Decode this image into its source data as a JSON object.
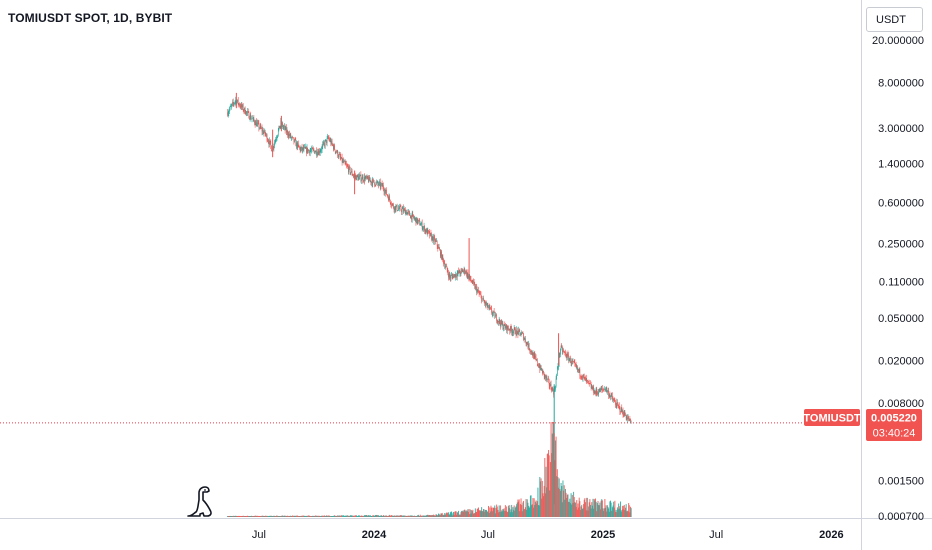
{
  "header": {
    "title": "TOMIUSDT SPOT, 1D, BYBIT",
    "currency_button": "USDT"
  },
  "colors": {
    "up": "#26a69a",
    "down": "#ef5350",
    "price_line": "#f23645",
    "label_bg": "#f05350",
    "grid": "#e0e3eb"
  },
  "price_label": {
    "symbol": "TOMIUSDT",
    "price": "0.005220",
    "countdown": "03:40:24"
  },
  "chart_data": {
    "type": "candlestick",
    "scale": "log",
    "y_ticks": [
      "20.000000",
      "8.000000",
      "3.000000",
      "1.400000",
      "0.600000",
      "0.250000",
      "0.110000",
      "0.050000",
      "0.020000",
      "0.008000",
      "0.001500",
      "0.000700"
    ],
    "x_ticks": [
      {
        "label": "Jul",
        "date": "2023-07-01",
        "bold": false
      },
      {
        "label": "2024",
        "date": "2024-01-01",
        "bold": true
      },
      {
        "label": "Jul",
        "date": "2024-07-01",
        "bold": false
      },
      {
        "label": "2025",
        "date": "2025-01-01",
        "bold": true
      },
      {
        "label": "Jul",
        "date": "2025-07-01",
        "bold": false
      },
      {
        "label": "2026",
        "date": "2026-01-01",
        "bold": true
      }
    ],
    "price_path": [
      {
        "date": "2023-05-12",
        "price": 4.2
      },
      {
        "date": "2023-05-25",
        "price": 5.5
      },
      {
        "date": "2023-06-05",
        "price": 4.6
      },
      {
        "date": "2023-06-25",
        "price": 3.4
      },
      {
        "date": "2023-07-12",
        "price": 2.6
      },
      {
        "date": "2023-07-22",
        "price": 1.9
      },
      {
        "date": "2023-08-05",
        "price": 3.3
      },
      {
        "date": "2023-08-20",
        "price": 2.5
      },
      {
        "date": "2023-09-05",
        "price": 1.9
      },
      {
        "date": "2023-10-05",
        "price": 1.8
      },
      {
        "date": "2023-10-20",
        "price": 2.4
      },
      {
        "date": "2023-11-10",
        "price": 1.5
      },
      {
        "date": "2023-12-01",
        "price": 1.05
      },
      {
        "date": "2023-12-20",
        "price": 1.0
      },
      {
        "date": "2024-01-15",
        "price": 0.85
      },
      {
        "date": "2024-02-01",
        "price": 0.55
      },
      {
        "date": "2024-02-20",
        "price": 0.5
      },
      {
        "date": "2024-03-15",
        "price": 0.38
      },
      {
        "date": "2024-04-10",
        "price": 0.25
      },
      {
        "date": "2024-05-01",
        "price": 0.12
      },
      {
        "date": "2024-05-25",
        "price": 0.14
      },
      {
        "date": "2024-06-25",
        "price": 0.07
      },
      {
        "date": "2024-07-25",
        "price": 0.042
      },
      {
        "date": "2024-08-25",
        "price": 0.035
      },
      {
        "date": "2024-09-20",
        "price": 0.018
      },
      {
        "date": "2024-10-15",
        "price": 0.01
      },
      {
        "date": "2024-10-25",
        "price": 0.026
      },
      {
        "date": "2024-11-10",
        "price": 0.02
      },
      {
        "date": "2024-11-30",
        "price": 0.014
      },
      {
        "date": "2024-12-20",
        "price": 0.01
      },
      {
        "date": "2025-01-05",
        "price": 0.011
      },
      {
        "date": "2025-01-20",
        "price": 0.008
      },
      {
        "date": "2025-02-05",
        "price": 0.0062
      },
      {
        "date": "2025-02-15",
        "price": 0.00522
      }
    ],
    "wicks": [
      {
        "date": "2023-05-26",
        "high": 6.4,
        "low": 4.6
      },
      {
        "date": "2023-07-23",
        "high": 2.9,
        "low": 1.6
      },
      {
        "date": "2023-08-06",
        "high": 3.9,
        "low": 2.8
      },
      {
        "date": "2023-12-01",
        "high": 1.2,
        "low": 0.72
      },
      {
        "date": "2024-06-01",
        "high": 0.28,
        "low": 0.11
      },
      {
        "date": "2024-10-15",
        "high": 0.012,
        "low": 0.0009
      },
      {
        "date": "2024-10-22",
        "high": 0.036,
        "low": 0.018
      }
    ],
    "volume_profile": [
      {
        "date": "2023-05-12",
        "level": 0.01
      },
      {
        "date": "2024-04-01",
        "level": 0.02
      },
      {
        "date": "2024-08-01",
        "level": 0.12
      },
      {
        "date": "2024-09-15",
        "level": 0.2
      },
      {
        "date": "2024-10-01",
        "level": 0.55
      },
      {
        "date": "2024-10-14",
        "level": 1.0
      },
      {
        "date": "2024-10-25",
        "level": 0.35
      },
      {
        "date": "2024-11-20",
        "level": 0.18
      },
      {
        "date": "2025-01-15",
        "level": 0.15
      },
      {
        "date": "2025-02-15",
        "level": 0.12
      }
    ],
    "last_price": 0.00522
  }
}
